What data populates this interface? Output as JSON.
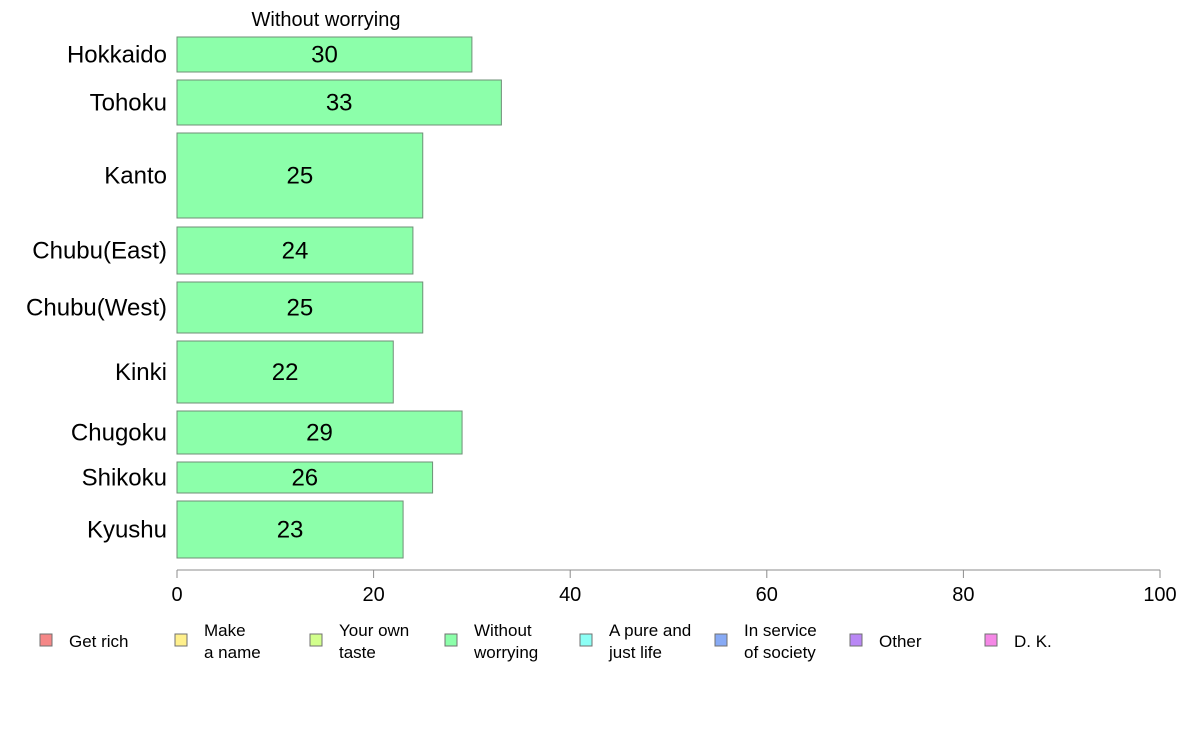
{
  "chart_data": {
    "type": "bar",
    "orientation": "horizontal",
    "title": "Without worrying",
    "categories": [
      "Hokkaido",
      "Tohoku",
      "Kanto",
      "Chubu(East)",
      "Chubu(West)",
      "Kinki",
      "Chugoku",
      "Shikoku",
      "Kyushu"
    ],
    "series": [
      {
        "name": "Without worrying",
        "color": "#8cffaa",
        "values": [
          30,
          33,
          25,
          24,
          25,
          22,
          29,
          26,
          23
        ]
      }
    ],
    "xlim": [
      0,
      100
    ],
    "xticks": [
      "0",
      "20",
      "40",
      "60",
      "80",
      "100"
    ],
    "grid": false,
    "legend_position": "bottom"
  },
  "legend": {
    "items": [
      {
        "lines": [
          "Get rich"
        ],
        "color": "#f58787"
      },
      {
        "lines": [
          "Make",
          "a name"
        ],
        "color": "#fff08c"
      },
      {
        "lines": [
          "Your own",
          "taste"
        ],
        "color": "#d2ff8c"
      },
      {
        "lines": [
          "Without",
          "worrying"
        ],
        "color": "#8cffaa"
      },
      {
        "lines": [
          "A pure and",
          "just life"
        ],
        "color": "#8cfff5"
      },
      {
        "lines": [
          "In service",
          "of society"
        ],
        "color": "#87aaf5"
      },
      {
        "lines": [
          "Other"
        ],
        "color": "#b987f5"
      },
      {
        "lines": [
          "D. K."
        ],
        "color": "#f587e6"
      }
    ]
  }
}
